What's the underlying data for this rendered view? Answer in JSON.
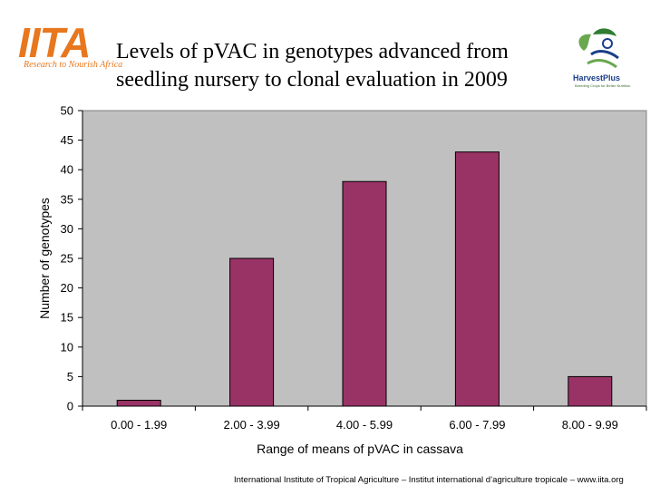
{
  "logos": {
    "left": {
      "name": "IITA",
      "tagline": "Research to Nourish Africa"
    },
    "right": {
      "name": "HarvestPlus",
      "tagline": "Breeding Crops for Better Nutrition"
    }
  },
  "title": {
    "line1": "Levels of pVAC in genotypes advanced from",
    "line2": "seedling nursery to clonal evaluation in 2009"
  },
  "chart_data": {
    "type": "bar",
    "categories": [
      "0.00 - 1.99",
      "2.00 - 3.99",
      "4.00 - 5.99",
      "6.00 - 7.99",
      "8.00 - 9.99"
    ],
    "values": [
      1,
      25,
      38,
      43,
      5
    ],
    "xlabel": "Range of means of pVAC in cassava",
    "ylabel": "Number of genotypes",
    "ylim": [
      0,
      50
    ],
    "yticks": [
      0,
      5,
      10,
      15,
      20,
      25,
      30,
      35,
      40,
      45,
      50
    ],
    "grid": false,
    "bar_color": "#993366",
    "plot_background": "#c0c0c0"
  },
  "footer": "International Institute of Tropical Agriculture – Institut international d’agriculture tropicale – www.iita.org"
}
